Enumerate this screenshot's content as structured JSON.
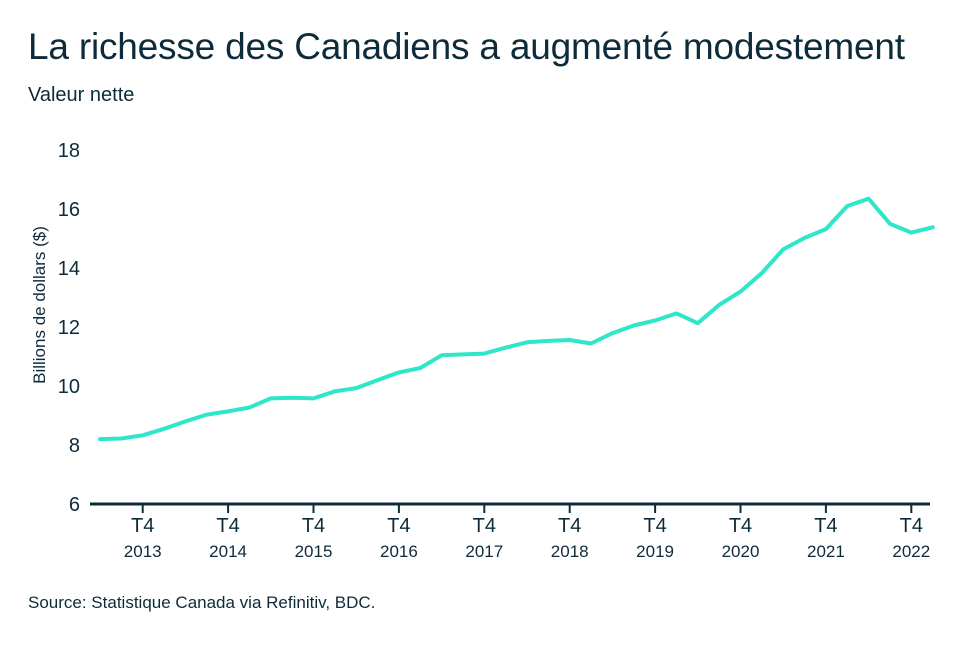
{
  "title": "La richesse des Canadiens a augmenté modestement",
  "subtitle": "Valeur nette",
  "source": "Source: Statistique Canada via Refinitiv, BDC.",
  "chart_data": {
    "type": "line",
    "ylabel": "Billions de dollars ($)",
    "ylim": [
      6,
      18
    ],
    "yticks": [
      6,
      8,
      10,
      12,
      14,
      16,
      18
    ],
    "grid": false,
    "line_color": "#2ee6c9",
    "axis_color": "#0d2b3a",
    "x_ticks": [
      {
        "quarter": "T4",
        "year": "2013",
        "index": 2
      },
      {
        "quarter": "T4",
        "year": "2014",
        "index": 6
      },
      {
        "quarter": "T4",
        "year": "2015",
        "index": 10
      },
      {
        "quarter": "T4",
        "year": "2016",
        "index": 14
      },
      {
        "quarter": "T4",
        "year": "2017",
        "index": 18
      },
      {
        "quarter": "T4",
        "year": "2018",
        "index": 22
      },
      {
        "quarter": "T4",
        "year": "2019",
        "index": 26
      },
      {
        "quarter": "T4",
        "year": "2020",
        "index": 30
      },
      {
        "quarter": "T4",
        "year": "2021",
        "index": 34
      },
      {
        "quarter": "T4",
        "year": "2022",
        "index": 38
      }
    ],
    "series": [
      {
        "values": [
          8.2,
          8.22,
          8.33,
          8.55,
          8.8,
          9.03,
          9.14,
          9.27,
          9.58,
          9.6,
          9.58,
          9.82,
          9.93,
          10.2,
          10.46,
          10.61,
          11.04,
          11.07,
          11.1,
          11.3,
          11.48,
          11.53,
          11.56,
          11.44,
          11.79,
          12.05,
          12.22,
          12.46,
          12.13,
          12.75,
          13.2,
          13.83,
          14.63,
          15.02,
          15.32,
          16.1,
          16.35,
          15.5,
          15.2,
          15.38
        ]
      }
    ]
  }
}
